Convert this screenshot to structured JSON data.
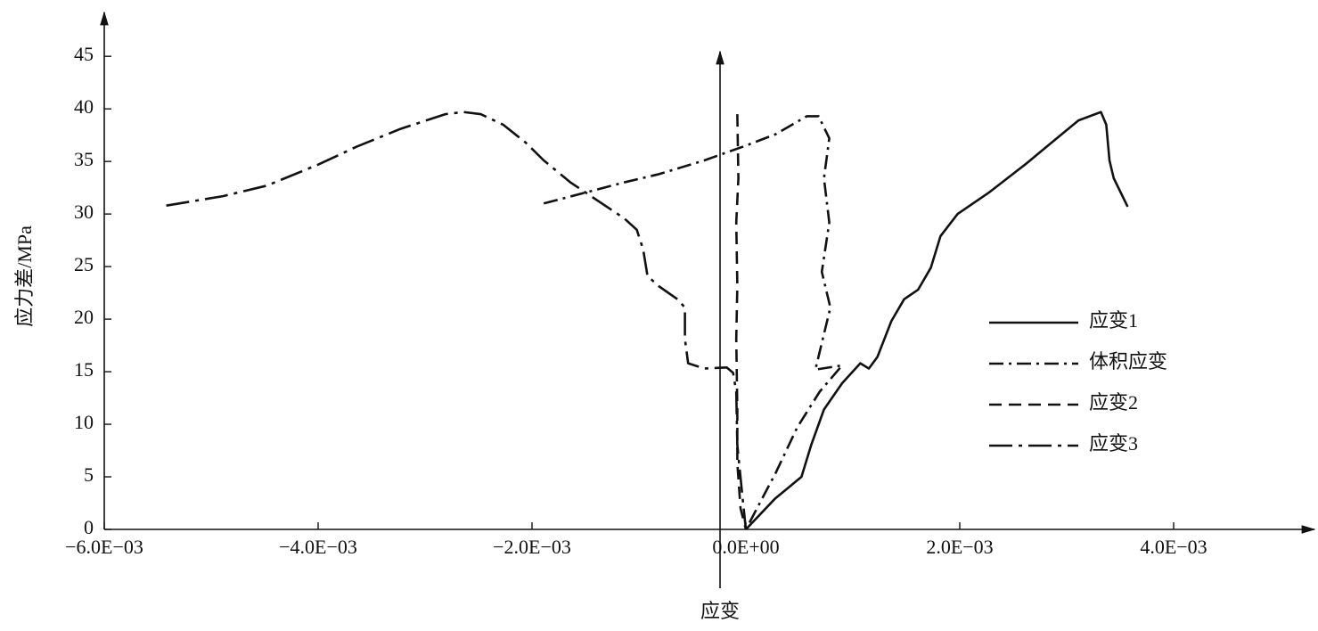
{
  "chart_data": {
    "type": "line",
    "x_label": "应变",
    "y_label": "应力差/MPa",
    "xlim": [
      -0.006,
      0.0053
    ],
    "ylim": [
      0,
      49
    ],
    "xticks": [
      {
        "value": -0.006,
        "label": "−6.0E−03"
      },
      {
        "value": -0.004,
        "label": "−4.0E−03"
      },
      {
        "value": -0.002,
        "label": "−2.0E−03"
      },
      {
        "value": 0,
        "label": "0.0E+00"
      },
      {
        "value": 0.002,
        "label": "2.0E−03"
      },
      {
        "value": 0.004,
        "label": "4.0E−03"
      }
    ],
    "yticks": [
      0,
      5,
      10,
      15,
      20,
      25,
      30,
      35,
      40,
      45
    ],
    "series": [
      {
        "name": "应变1",
        "color": "#111111",
        "linestyle": "solid",
        "x": [
          0,
          0.00027,
          0.00052,
          0.00061,
          0.00073,
          0.0009,
          0.00107,
          0.00115,
          0.00123,
          0.00136,
          0.00148,
          0.00161,
          0.00173,
          0.00182,
          0.00198,
          0.00228,
          0.00261,
          0.00286,
          0.00311,
          0.00332,
          0.00337,
          0.0034,
          0.00344,
          0.00357
        ],
        "values": [
          0,
          2.9,
          5.0,
          8.0,
          11.4,
          13.9,
          15.8,
          15.3,
          16.4,
          19.8,
          21.9,
          22.8,
          24.9,
          27.9,
          30.0,
          32.1,
          34.7,
          36.8,
          38.9,
          39.7,
          38.5,
          35.1,
          33.4,
          30.7
        ]
      },
      {
        "name": "体积应变",
        "color": "#111111",
        "linestyle": "dash-dot",
        "x": [
          -0.00189,
          -0.00148,
          -0.00114,
          -0.00081,
          -0.00039,
          0,
          0.00028,
          0.00057,
          0.00068,
          0.00078,
          0.00073,
          0.00078,
          0.00071,
          0.00079,
          0.00065,
          0.0009,
          0.00069,
          0.00048,
          0.00028,
          0
        ],
        "values": [
          31.0,
          32.1,
          33.0,
          33.8,
          35.1,
          36.5,
          37.6,
          39.3,
          39.3,
          37.2,
          33.4,
          29.2,
          24.5,
          21.1,
          15.2,
          15.6,
          13.1,
          9.7,
          5.4,
          0
        ]
      },
      {
        "name": "应变2",
        "color": "#111111",
        "linestyle": "dashed",
        "x": [
          -8e-05,
          -7e-05,
          -9e-05,
          -8e-05,
          -9e-05,
          -8e-05,
          -8e-05,
          -5e-05,
          0
        ],
        "values": [
          39.5,
          33.4,
          29.2,
          23.2,
          18.1,
          11.4,
          6.3,
          2.0,
          0
        ]
      },
      {
        "name": "应变3",
        "color": "#111111",
        "linestyle": "long-dash-dot",
        "x": [
          -0.00542,
          -0.00489,
          -0.00448,
          -0.004,
          -0.00364,
          -0.00323,
          -0.00281,
          -0.00264,
          -0.00248,
          -0.00227,
          -0.00206,
          -0.00189,
          -0.00164,
          -0.00139,
          -0.00114,
          -0.00102,
          -0.00096,
          -0.00092,
          -0.00081,
          -0.00064,
          -0.00057,
          -0.00057,
          -0.00054,
          -0.00039,
          -0.00018,
          -0.00012,
          -9e-05,
          -8e-05,
          -3e-05,
          0
        ],
        "values": [
          30.8,
          31.7,
          32.7,
          34.7,
          36.4,
          38.1,
          39.5,
          39.7,
          39.5,
          38.5,
          36.8,
          35.1,
          33.0,
          31.3,
          29.6,
          28.5,
          26.6,
          24.1,
          23.1,
          21.9,
          21.1,
          18.1,
          15.8,
          15.3,
          15.4,
          14.9,
          13.1,
          8.0,
          2.9,
          0
        ]
      }
    ]
  }
}
